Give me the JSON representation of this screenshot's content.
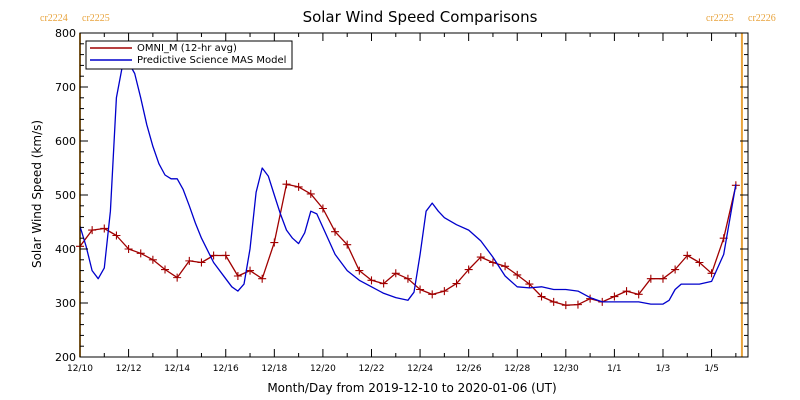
{
  "chart_data": {
    "type": "line",
    "title": "Solar Wind Speed Comparisons",
    "xlabel": "Month/Day from 2019-12-10 to 2020-01-06 (UT)",
    "ylabel": "Solar Wind Speed (km/s)",
    "xlim": [
      "2019-12-10 00:00",
      "2020-01-06 12:00"
    ],
    "ylim": [
      200,
      800
    ],
    "yticks": [
      200,
      300,
      400,
      500,
      600,
      700,
      800
    ],
    "xticks": [
      {
        "date": "2019-12-10",
        "label": "12/10"
      },
      {
        "date": "2019-12-12",
        "label": "12/12"
      },
      {
        "date": "2019-12-14",
        "label": "12/14"
      },
      {
        "date": "2019-12-16",
        "label": "12/16"
      },
      {
        "date": "2019-12-18",
        "label": "12/18"
      },
      {
        "date": "2019-12-20",
        "label": "12/20"
      },
      {
        "date": "2019-12-22",
        "label": "12/22"
      },
      {
        "date": "2019-12-24",
        "label": "12/24"
      },
      {
        "date": "2019-12-26",
        "label": "12/26"
      },
      {
        "date": "2019-12-28",
        "label": "12/28"
      },
      {
        "date": "2019-12-30",
        "label": "12/30"
      },
      {
        "date": "2020-01-01",
        "label": "1/1"
      },
      {
        "date": "2020-01-03",
        "label": "1/3"
      },
      {
        "date": "2020-01-05",
        "label": "1/5"
      }
    ],
    "legend_position": "top-left",
    "carrington_markers": [
      {
        "date": "2019-12-10 00:00",
        "labels": [
          "cr2224",
          "cr2225"
        ],
        "color": "#e8a33c",
        "side": "left"
      },
      {
        "date": "2020-01-06 06:00",
        "labels": [
          "cr2225",
          "cr2226"
        ],
        "color": "#e8a33c",
        "side": "right"
      }
    ],
    "series": [
      {
        "name": "OMNI_M (12-hr avg)",
        "color": "#a00000",
        "marker": "plus",
        "points": [
          [
            "2019-12-10 00:00",
            405
          ],
          [
            "2019-12-10 12:00",
            435
          ],
          [
            "2019-12-11 00:00",
            438
          ],
          [
            "2019-12-11 12:00",
            425
          ],
          [
            "2019-12-12 00:00",
            400
          ],
          [
            "2019-12-12 12:00",
            392
          ],
          [
            "2019-12-13 00:00",
            380
          ],
          [
            "2019-12-13 12:00",
            362
          ],
          [
            "2019-12-14 00:00",
            347
          ],
          [
            "2019-12-14 12:00",
            378
          ],
          [
            "2019-12-15 00:00",
            375
          ],
          [
            "2019-12-15 12:00",
            388
          ],
          [
            "2019-12-16 00:00",
            388
          ],
          [
            "2019-12-16 12:00",
            350
          ],
          [
            "2019-12-17 00:00",
            360
          ],
          [
            "2019-12-17 12:00",
            345
          ],
          [
            "2019-12-18 00:00",
            412
          ],
          [
            "2019-12-18 12:00",
            520
          ],
          [
            "2019-12-19 00:00",
            515
          ],
          [
            "2019-12-19 12:00",
            502
          ],
          [
            "2019-12-20 00:00",
            475
          ],
          [
            "2019-12-20 12:00",
            432
          ],
          [
            "2019-12-21 00:00",
            408
          ],
          [
            "2019-12-21 12:00",
            360
          ],
          [
            "2019-12-22 00:00",
            342
          ],
          [
            "2019-12-22 12:00",
            336
          ],
          [
            "2019-12-23 00:00",
            355
          ],
          [
            "2019-12-23 12:00",
            345
          ],
          [
            "2019-12-24 00:00",
            325
          ],
          [
            "2019-12-24 12:00",
            316
          ],
          [
            "2019-12-25 00:00",
            322
          ],
          [
            "2019-12-25 12:00",
            336
          ],
          [
            "2019-12-26 00:00",
            362
          ],
          [
            "2019-12-26 12:00",
            385
          ],
          [
            "2019-12-27 00:00",
            375
          ],
          [
            "2019-12-27 12:00",
            368
          ],
          [
            "2019-12-28 00:00",
            352
          ],
          [
            "2019-12-28 12:00",
            335
          ],
          [
            "2019-12-29 00:00",
            312
          ],
          [
            "2019-12-29 12:00",
            302
          ],
          [
            "2019-12-30 00:00",
            296
          ],
          [
            "2019-12-30 12:00",
            297
          ],
          [
            "2019-12-31 00:00",
            308
          ],
          [
            "2019-12-31 12:00",
            302
          ],
          [
            "2020-01-01 00:00",
            312
          ],
          [
            "2020-01-01 12:00",
            322
          ],
          [
            "2020-01-02 00:00",
            316
          ],
          [
            "2020-01-02 12:00",
            345
          ],
          [
            "2020-01-03 00:00",
            345
          ],
          [
            "2020-01-03 12:00",
            362
          ],
          [
            "2020-01-04 00:00",
            388
          ],
          [
            "2020-01-04 12:00",
            375
          ],
          [
            "2020-01-05 00:00",
            355
          ],
          [
            "2020-01-05 12:00",
            420
          ],
          [
            "2020-01-06 00:00",
            518
          ]
        ]
      },
      {
        "name": "Predictive Science MAS Model",
        "color": "#0000cc",
        "marker": "none",
        "points": [
          [
            "2019-12-10 00:00",
            442
          ],
          [
            "2019-12-10 06:00",
            405
          ],
          [
            "2019-12-10 12:00",
            360
          ],
          [
            "2019-12-10 18:00",
            345
          ],
          [
            "2019-12-11 00:00",
            365
          ],
          [
            "2019-12-11 06:00",
            470
          ],
          [
            "2019-12-11 12:00",
            680
          ],
          [
            "2019-12-11 18:00",
            740
          ],
          [
            "2019-12-12 00:00",
            745
          ],
          [
            "2019-12-12 06:00",
            725
          ],
          [
            "2019-12-12 12:00",
            680
          ],
          [
            "2019-12-12 18:00",
            630
          ],
          [
            "2019-12-13 00:00",
            590
          ],
          [
            "2019-12-13 06:00",
            558
          ],
          [
            "2019-12-13 12:00",
            537
          ],
          [
            "2019-12-13 18:00",
            530
          ],
          [
            "2019-12-14 00:00",
            530
          ],
          [
            "2019-12-14 06:00",
            510
          ],
          [
            "2019-12-14 12:00",
            480
          ],
          [
            "2019-12-14 18:00",
            448
          ],
          [
            "2019-12-15 00:00",
            420
          ],
          [
            "2019-12-15 12:00",
            375
          ],
          [
            "2019-12-16 00:00",
            345
          ],
          [
            "2019-12-16 06:00",
            330
          ],
          [
            "2019-12-16 12:00",
            322
          ],
          [
            "2019-12-16 18:00",
            335
          ],
          [
            "2019-12-17 00:00",
            400
          ],
          [
            "2019-12-17 06:00",
            505
          ],
          [
            "2019-12-17 12:00",
            550
          ],
          [
            "2019-12-17 18:00",
            535
          ],
          [
            "2019-12-18 00:00",
            500
          ],
          [
            "2019-12-18 06:00",
            465
          ],
          [
            "2019-12-18 12:00",
            435
          ],
          [
            "2019-12-18 18:00",
            420
          ],
          [
            "2019-12-19 00:00",
            410
          ],
          [
            "2019-12-19 06:00",
            430
          ],
          [
            "2019-12-19 12:00",
            470
          ],
          [
            "2019-12-19 18:00",
            465
          ],
          [
            "2019-12-20 00:00",
            440
          ],
          [
            "2019-12-20 12:00",
            390
          ],
          [
            "2019-12-21 00:00",
            360
          ],
          [
            "2019-12-21 12:00",
            342
          ],
          [
            "2019-12-22 00:00",
            330
          ],
          [
            "2019-12-22 12:00",
            318
          ],
          [
            "2019-12-23 00:00",
            310
          ],
          [
            "2019-12-23 12:00",
            305
          ],
          [
            "2019-12-23 18:00",
            320
          ],
          [
            "2019-12-24 00:00",
            390
          ],
          [
            "2019-12-24 06:00",
            470
          ],
          [
            "2019-12-24 12:00",
            485
          ],
          [
            "2019-12-24 18:00",
            470
          ],
          [
            "2019-12-25 00:00",
            458
          ],
          [
            "2019-12-25 12:00",
            445
          ],
          [
            "2019-12-26 00:00",
            435
          ],
          [
            "2019-12-26 12:00",
            415
          ],
          [
            "2019-12-27 00:00",
            385
          ],
          [
            "2019-12-27 12:00",
            350
          ],
          [
            "2019-12-28 00:00",
            330
          ],
          [
            "2019-12-28 12:00",
            328
          ],
          [
            "2019-12-29 00:00",
            330
          ],
          [
            "2019-12-29 12:00",
            325
          ],
          [
            "2019-12-30 00:00",
            325
          ],
          [
            "2019-12-30 12:00",
            322
          ],
          [
            "2019-12-31 00:00",
            310
          ],
          [
            "2019-12-31 12:00",
            302
          ],
          [
            "2020-01-01 00:00",
            302
          ],
          [
            "2020-01-01 12:00",
            302
          ],
          [
            "2020-01-02 00:00",
            302
          ],
          [
            "2020-01-02 12:00",
            298
          ],
          [
            "2020-01-03 00:00",
            298
          ],
          [
            "2020-01-03 06:00",
            305
          ],
          [
            "2020-01-03 12:00",
            325
          ],
          [
            "2020-01-03 18:00",
            335
          ],
          [
            "2020-01-04 00:00",
            335
          ],
          [
            "2020-01-04 12:00",
            335
          ],
          [
            "2020-01-05 00:00",
            340
          ],
          [
            "2020-01-05 12:00",
            390
          ],
          [
            "2020-01-06 00:00",
            520
          ]
        ]
      }
    ]
  }
}
